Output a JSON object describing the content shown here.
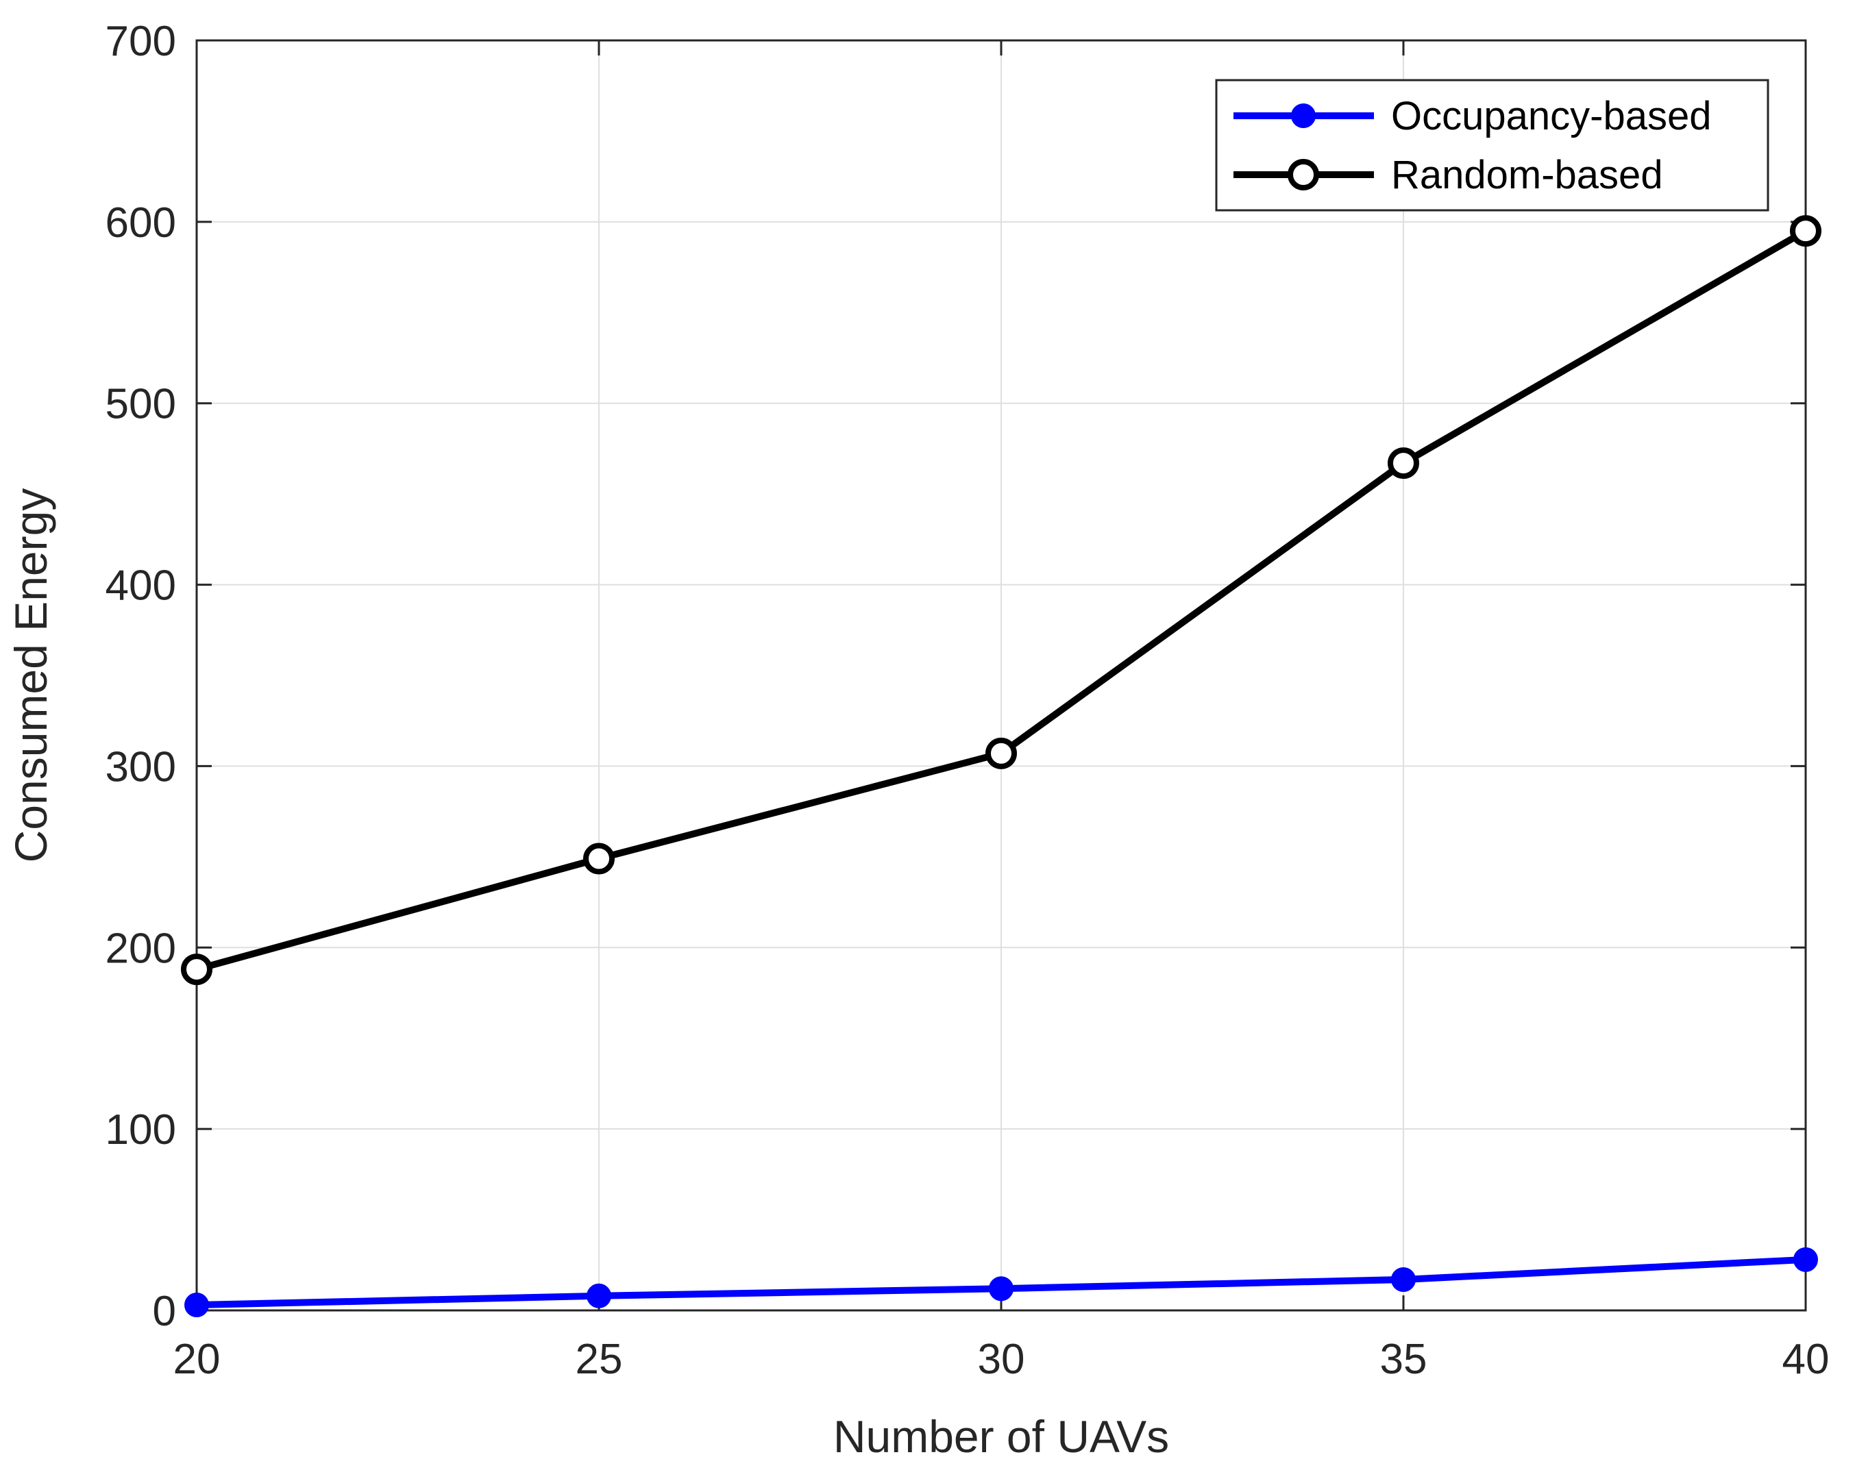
{
  "chart_data": {
    "type": "line",
    "title": "",
    "xlabel": "Number of UAVs",
    "ylabel": "Consumed Energy",
    "xlim": [
      20,
      40
    ],
    "ylim": [
      0,
      700
    ],
    "xticks": [
      20,
      25,
      30,
      35,
      40
    ],
    "yticks": [
      0,
      100,
      200,
      300,
      400,
      500,
      600,
      700
    ],
    "grid": true,
    "legend_position": "top-right",
    "series": [
      {
        "name": "Occupancy-based",
        "color": "#0000ff",
        "marker": "filled-circle",
        "x": [
          20,
          25,
          30,
          35,
          40
        ],
        "y": [
          3,
          8,
          12,
          17,
          28
        ]
      },
      {
        "name": "Random-based",
        "color": "#000000",
        "marker": "open-circle",
        "x": [
          20,
          25,
          30,
          35,
          40
        ],
        "y": [
          188,
          249,
          307,
          467,
          595
        ]
      }
    ]
  }
}
